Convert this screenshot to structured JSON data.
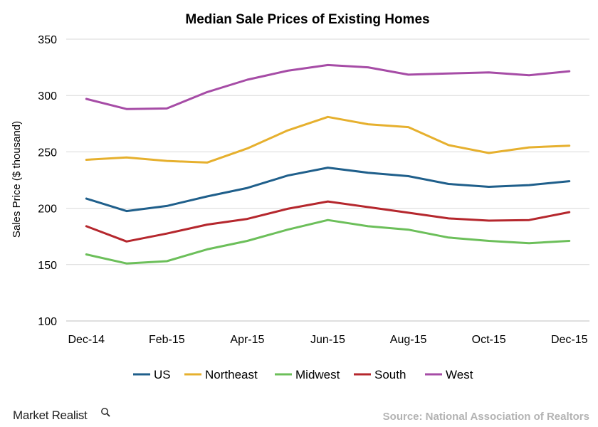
{
  "chart_data": {
    "type": "line",
    "title": "Median Sale Prices of Existing Homes",
    "xlabel": "",
    "ylabel": "Sales Price ($ thousand)",
    "ylim": [
      100,
      350
    ],
    "yticks": [
      100,
      150,
      200,
      250,
      300,
      350
    ],
    "grid": true,
    "legend_position": "bottom",
    "categories": [
      "Dec-14",
      "Jan-15",
      "Feb-15",
      "Mar-15",
      "Apr-15",
      "May-15",
      "Jun-15",
      "Jul-15",
      "Aug-15",
      "Sep-15",
      "Oct-15",
      "Nov-15",
      "Dec-15"
    ],
    "x_tick_labels": [
      "Dec-14",
      "Feb-15",
      "Apr-15",
      "Jun-15",
      "Aug-15",
      "Oct-15",
      "Dec-15"
    ],
    "series": [
      {
        "name": "US",
        "color": "#1f5f8b",
        "values": [
          208.5,
          197.5,
          202,
          210.5,
          218,
          229,
          236,
          231.5,
          228.5,
          221.5,
          219,
          220.5,
          224
        ]
      },
      {
        "name": "Northeast",
        "color": "#e6b02e",
        "values": [
          243,
          245,
          242,
          240.5,
          253,
          269,
          281,
          274.5,
          272,
          256,
          249,
          254,
          255.5
        ]
      },
      {
        "name": "Midwest",
        "color": "#6cbf5a",
        "values": [
          159,
          151,
          153,
          163.5,
          171,
          181,
          189.5,
          184,
          181,
          174,
          171,
          169,
          171
        ]
      },
      {
        "name": "South",
        "color": "#b5272d",
        "values": [
          184,
          170.5,
          177.5,
          185.5,
          190.5,
          199.5,
          206,
          201,
          196,
          191,
          189,
          189.5,
          196.5
        ]
      },
      {
        "name": "West",
        "color": "#a64ca6",
        "values": [
          297,
          288,
          288.5,
          303,
          314,
          322,
          327,
          325,
          318.5,
          319.5,
          320.5,
          318,
          321.5
        ]
      }
    ]
  },
  "footer": {
    "brand": "Market Realist",
    "source": "Source: National Association of Realtors"
  },
  "icons": {
    "brand_icon": "magnifier-icon"
  }
}
